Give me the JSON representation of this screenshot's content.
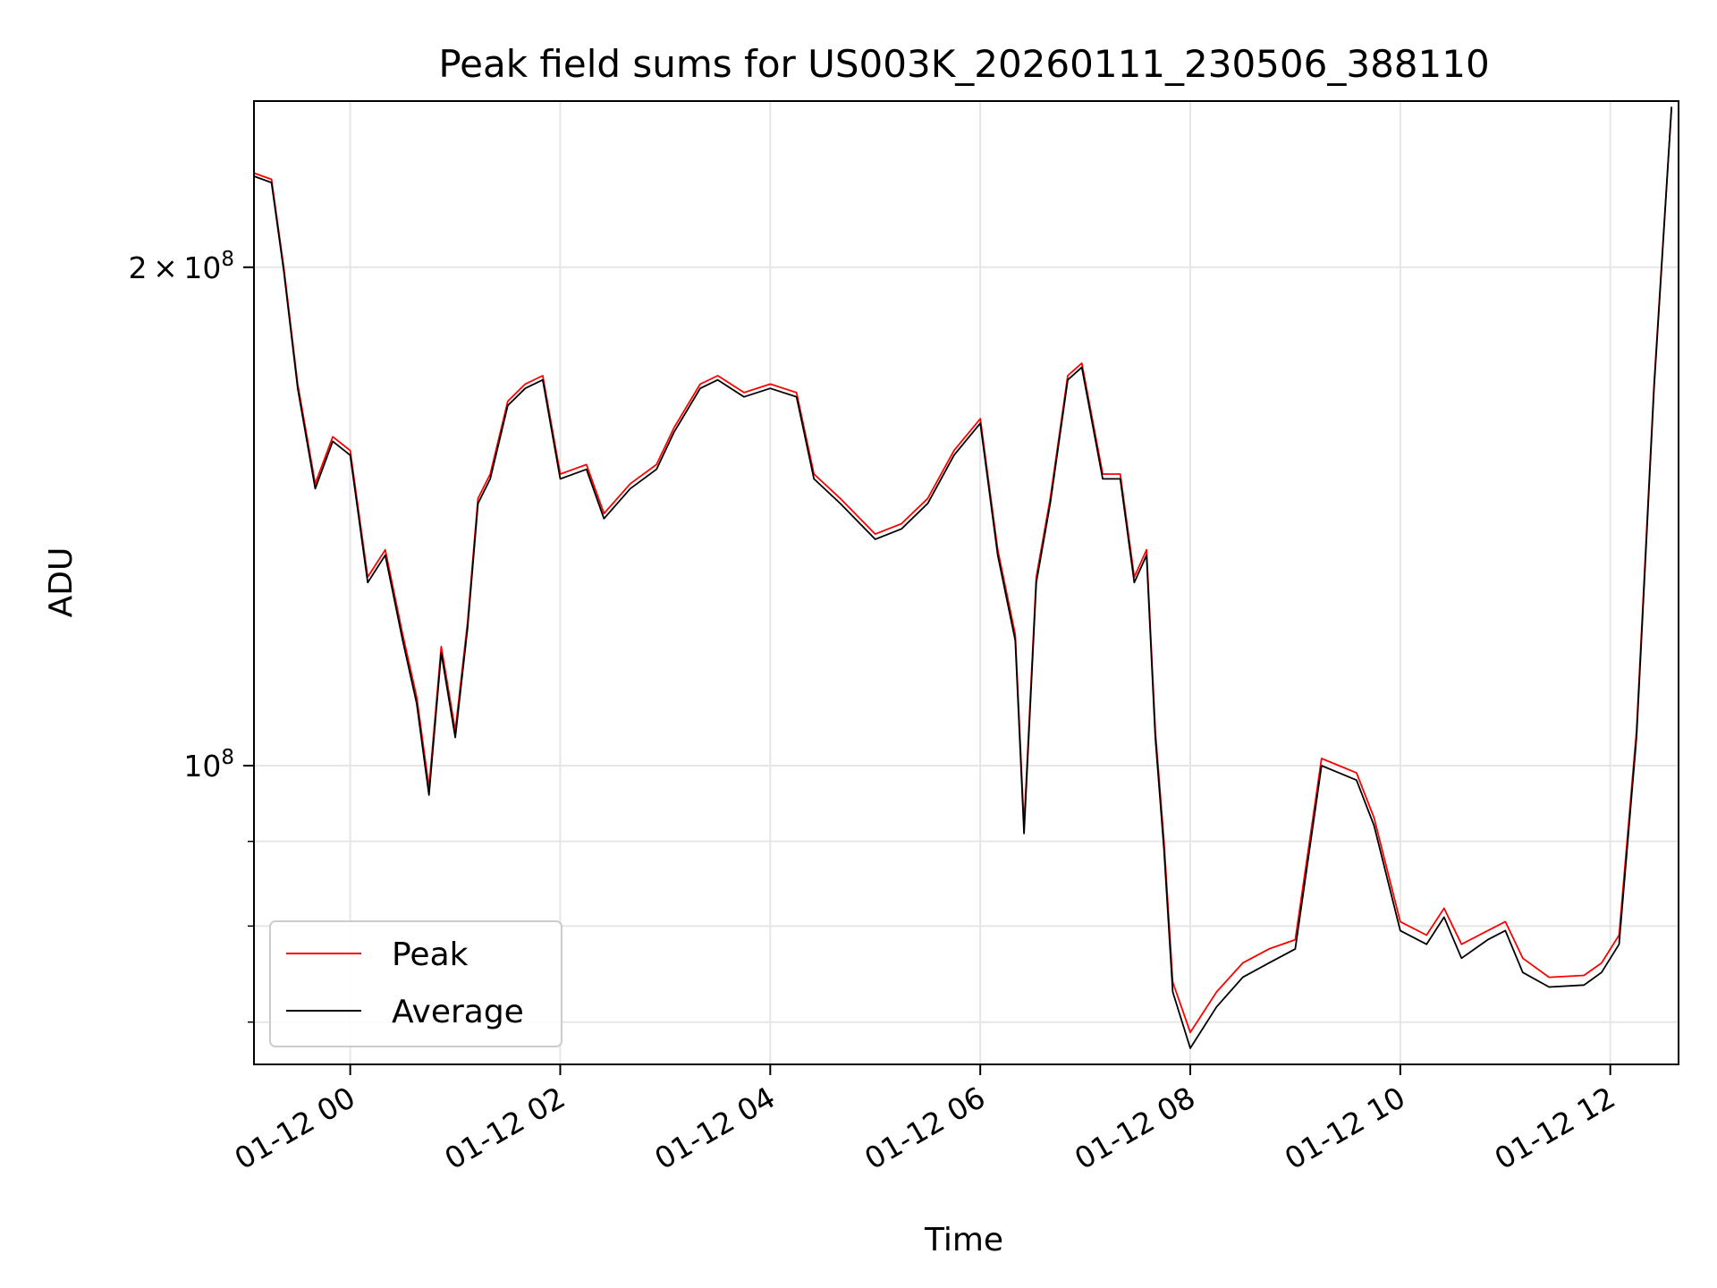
{
  "chart_data": {
    "type": "line",
    "title": "Peak field sums for US003K_20260111_230506_388110",
    "xlabel": "Time",
    "ylabel": "ADU",
    "x_axis": {
      "kind": "datetime",
      "range": [
        "2026-01-11T23:05:00",
        "2026-01-12T12:39:00"
      ],
      "ticks": [
        "2026-01-12T00:00",
        "2026-01-12T02:00",
        "2026-01-12T04:00",
        "2026-01-12T06:00",
        "2026-01-12T08:00",
        "2026-01-12T10:00",
        "2026-01-12T12:00"
      ],
      "tick_labels": [
        "01-12 00",
        "01-12 02",
        "01-12 04",
        "01-12 06",
        "01-12 08",
        "01-12 10",
        "01-12 12"
      ]
    },
    "y_axis": {
      "scale": "log",
      "range": [
        66000000,
        252000000
      ],
      "major_ticks": [
        {
          "value": 100000000,
          "mantissa": "",
          "exponent": "8"
        },
        {
          "value": 200000000,
          "mantissa": "2",
          "exponent": "8"
        }
      ],
      "minor_ticks": [
        70000000,
        80000000,
        90000000
      ]
    },
    "grid": true,
    "legend": {
      "position": "lower-left",
      "entries": [
        {
          "name": "Peak",
          "color": "#ff0000"
        },
        {
          "name": "Average",
          "color": "#000000"
        }
      ]
    },
    "series": [
      {
        "name": "Peak",
        "color": "#ff0000",
        "x": [
          "2026-01-11T23:05",
          "2026-01-11T23:15",
          "2026-01-11T23:22",
          "2026-01-11T23:30",
          "2026-01-11T23:40",
          "2026-01-11T23:50",
          "2026-01-12T00:00",
          "2026-01-12T00:10",
          "2026-01-12T00:20",
          "2026-01-12T00:30",
          "2026-01-12T00:38",
          "2026-01-12T00:45",
          "2026-01-12T00:52",
          "2026-01-12T01:00",
          "2026-01-12T01:07",
          "2026-01-12T01:13",
          "2026-01-12T01:20",
          "2026-01-12T01:30",
          "2026-01-12T01:40",
          "2026-01-12T01:50",
          "2026-01-12T02:00",
          "2026-01-12T02:15",
          "2026-01-12T02:25",
          "2026-01-12T02:40",
          "2026-01-12T02:55",
          "2026-01-12T03:05",
          "2026-01-12T03:20",
          "2026-01-12T03:30",
          "2026-01-12T03:45",
          "2026-01-12T04:00",
          "2026-01-12T04:15",
          "2026-01-12T04:25",
          "2026-01-12T04:40",
          "2026-01-12T05:00",
          "2026-01-12T05:15",
          "2026-01-12T05:30",
          "2026-01-12T05:45",
          "2026-01-12T06:00",
          "2026-01-12T06:10",
          "2026-01-12T06:20",
          "2026-01-12T06:25",
          "2026-01-12T06:32",
          "2026-01-12T06:40",
          "2026-01-12T06:50",
          "2026-01-12T06:58",
          "2026-01-12T07:10",
          "2026-01-12T07:20",
          "2026-01-12T07:28",
          "2026-01-12T07:35",
          "2026-01-12T07:40",
          "2026-01-12T07:45",
          "2026-01-12T07:50",
          "2026-01-12T08:00",
          "2026-01-12T08:15",
          "2026-01-12T08:30",
          "2026-01-12T08:45",
          "2026-01-12T09:00",
          "2026-01-12T09:15",
          "2026-01-12T09:25",
          "2026-01-12T09:35",
          "2026-01-12T09:45",
          "2026-01-12T10:00",
          "2026-01-12T10:15",
          "2026-01-12T10:25",
          "2026-01-12T10:35",
          "2026-01-12T10:50",
          "2026-01-12T11:00",
          "2026-01-12T11:10",
          "2026-01-12T11:25",
          "2026-01-12T11:45",
          "2026-01-12T11:55",
          "2026-01-12T12:05",
          "2026-01-12T12:15",
          "2026-01-12T12:25",
          "2026-01-12T12:35"
        ],
        "values": [
          228000000,
          226000000,
          200000000,
          170000000,
          148000000,
          158000000,
          155000000,
          130000000,
          135000000,
          120000000,
          110000000,
          97000000,
          118000000,
          105000000,
          122000000,
          145000000,
          150000000,
          166000000,
          170000000,
          172000000,
          150000000,
          152000000,
          142000000,
          148000000,
          152000000,
          160000000,
          170000000,
          172000000,
          168000000,
          170000000,
          168000000,
          150000000,
          145000000,
          138000000,
          140000000,
          145000000,
          155000000,
          162000000,
          135000000,
          120000000,
          92000000,
          130000000,
          145000000,
          172000000,
          175000000,
          150000000,
          150000000,
          130000000,
          135000000,
          105000000,
          90000000,
          74000000,
          69000000,
          73000000,
          76000000,
          77500000,
          78500000,
          101000000,
          100000000,
          99000000,
          93000000,
          80500000,
          79000000,
          82000000,
          78000000,
          79500000,
          80500000,
          76500000,
          74500000,
          74700000,
          76000000,
          79000000,
          105000000,
          170000000,
          250000000
        ]
      },
      {
        "name": "Average",
        "color": "#000000",
        "x": [
          "2026-01-11T23:05",
          "2026-01-11T23:15",
          "2026-01-11T23:22",
          "2026-01-11T23:30",
          "2026-01-11T23:40",
          "2026-01-11T23:50",
          "2026-01-12T00:00",
          "2026-01-12T00:10",
          "2026-01-12T00:20",
          "2026-01-12T00:30",
          "2026-01-12T00:38",
          "2026-01-12T00:45",
          "2026-01-12T00:52",
          "2026-01-12T01:00",
          "2026-01-12T01:07",
          "2026-01-12T01:13",
          "2026-01-12T01:20",
          "2026-01-12T01:30",
          "2026-01-12T01:40",
          "2026-01-12T01:50",
          "2026-01-12T02:00",
          "2026-01-12T02:15",
          "2026-01-12T02:25",
          "2026-01-12T02:40",
          "2026-01-12T02:55",
          "2026-01-12T03:05",
          "2026-01-12T03:20",
          "2026-01-12T03:30",
          "2026-01-12T03:45",
          "2026-01-12T04:00",
          "2026-01-12T04:15",
          "2026-01-12T04:25",
          "2026-01-12T04:40",
          "2026-01-12T05:00",
          "2026-01-12T05:15",
          "2026-01-12T05:30",
          "2026-01-12T05:45",
          "2026-01-12T06:00",
          "2026-01-12T06:10",
          "2026-01-12T06:20",
          "2026-01-12T06:25",
          "2026-01-12T06:32",
          "2026-01-12T06:40",
          "2026-01-12T06:50",
          "2026-01-12T06:58",
          "2026-01-12T07:10",
          "2026-01-12T07:20",
          "2026-01-12T07:28",
          "2026-01-12T07:35",
          "2026-01-12T07:40",
          "2026-01-12T07:45",
          "2026-01-12T07:50",
          "2026-01-12T08:00",
          "2026-01-12T08:15",
          "2026-01-12T08:30",
          "2026-01-12T08:45",
          "2026-01-12T09:00",
          "2026-01-12T09:15",
          "2026-01-12T09:25",
          "2026-01-12T09:35",
          "2026-01-12T09:45",
          "2026-01-12T10:00",
          "2026-01-12T10:15",
          "2026-01-12T10:25",
          "2026-01-12T10:35",
          "2026-01-12T10:50",
          "2026-01-12T11:00",
          "2026-01-12T11:10",
          "2026-01-12T11:25",
          "2026-01-12T11:45",
          "2026-01-12T11:55",
          "2026-01-12T12:05",
          "2026-01-12T12:15",
          "2026-01-12T12:25",
          "2026-01-12T12:35"
        ],
        "values": [
          227000000,
          225000000,
          199000000,
          169000000,
          147000000,
          157000000,
          154000000,
          129000000,
          134000000,
          119000000,
          109000000,
          96000000,
          117000000,
          104000000,
          121000000,
          144000000,
          149000000,
          165000000,
          169000000,
          171000000,
          149000000,
          151000000,
          141000000,
          147000000,
          151000000,
          159000000,
          169000000,
          171000000,
          167000000,
          169000000,
          167000000,
          149000000,
          144000000,
          137000000,
          139000000,
          144000000,
          154000000,
          161000000,
          134000000,
          119000000,
          91000000,
          129000000,
          144000000,
          171000000,
          174000000,
          149000000,
          149000000,
          129000000,
          134000000,
          104000000,
          89000000,
          73000000,
          67500000,
          71500000,
          74500000,
          76000000,
          77500000,
          100000000,
          99000000,
          98000000,
          92000000,
          79500000,
          78000000,
          81000000,
          76500000,
          78500000,
          79500000,
          75000000,
          73500000,
          73700000,
          75000000,
          78000000,
          104000000,
          169000000,
          250000000
        ]
      }
    ]
  }
}
